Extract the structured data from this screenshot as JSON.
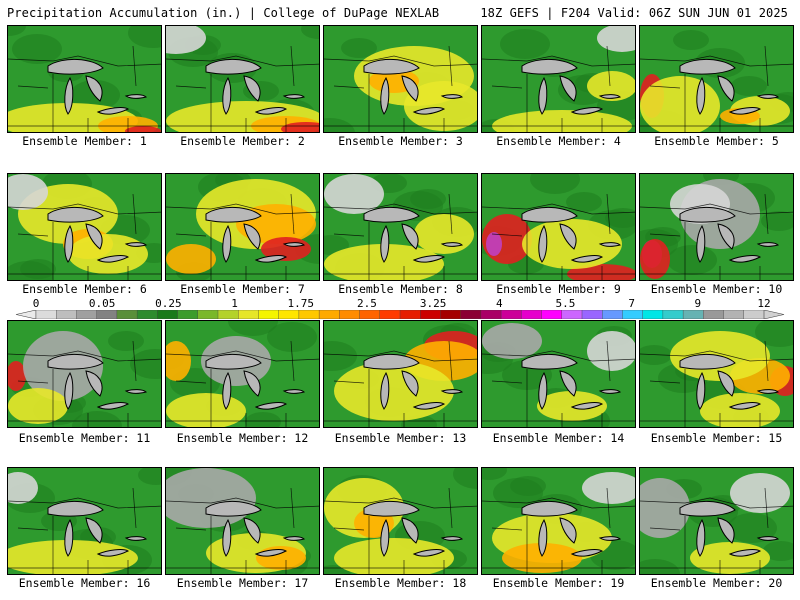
{
  "header": {
    "left": "Precipitation Accumulation (in.) | College of DuPage NEXLAB",
    "right": "18Z GEFS | F204 Valid: 06Z SUN JUN 01 2025"
  },
  "colorbar": {
    "tick_labels": [
      "0",
      "0.05",
      "0.25",
      "1",
      "1.75",
      "2.5",
      "3.25",
      "4",
      "5.5",
      "7",
      "9",
      "12"
    ],
    "colors": [
      "#dcdcdc",
      "#bebebe",
      "#a0a0a0",
      "#828282",
      "#5a8f3a",
      "#2e8b2e",
      "#1a7a1a",
      "#3c9c2c",
      "#7ab82a",
      "#b4d22a",
      "#e6e628",
      "#f5f500",
      "#ffe600",
      "#ffc800",
      "#ffaa00",
      "#ff8c00",
      "#ff6400",
      "#ff3c00",
      "#e61e00",
      "#cc0000",
      "#a50000",
      "#8b0033",
      "#aa0066",
      "#cc0099",
      "#e600cc",
      "#ff00ff",
      "#cc66ff",
      "#9966ff",
      "#6699ff",
      "#33ccff",
      "#00e6e6",
      "#33cccc",
      "#66b3b3",
      "#999999",
      "#b3b3b3",
      "#cccccc"
    ]
  },
  "members": [
    {
      "label": "Ensemble Member: 1"
    },
    {
      "label": "Ensemble Member: 2"
    },
    {
      "label": "Ensemble Member: 3"
    },
    {
      "label": "Ensemble Member: 4"
    },
    {
      "label": "Ensemble Member: 5"
    },
    {
      "label": "Ensemble Member: 6"
    },
    {
      "label": "Ensemble Member: 7"
    },
    {
      "label": "Ensemble Member: 8"
    },
    {
      "label": "Ensemble Member: 9"
    },
    {
      "label": "Ensemble Member: 10"
    },
    {
      "label": "Ensemble Member: 11"
    },
    {
      "label": "Ensemble Member: 12"
    },
    {
      "label": "Ensemble Member: 13"
    },
    {
      "label": "Ensemble Member: 14"
    },
    {
      "label": "Ensemble Member: 15"
    },
    {
      "label": "Ensemble Member: 16"
    },
    {
      "label": "Ensemble Member: 17"
    },
    {
      "label": "Ensemble Member: 18"
    },
    {
      "label": "Ensemble Member: 19"
    },
    {
      "label": "Ensemble Member: 20"
    }
  ],
  "colors": {
    "base_green": "#2e9a2e",
    "dark_green": "#1f7d1f",
    "yellow": "#e8e82a",
    "orange": "#ffb000",
    "red": "#e02020",
    "grey": "#a8a8a8",
    "light_grey": "#d6d6d6",
    "magenta": "#c040c0",
    "lake": "#b8b8b8"
  }
}
